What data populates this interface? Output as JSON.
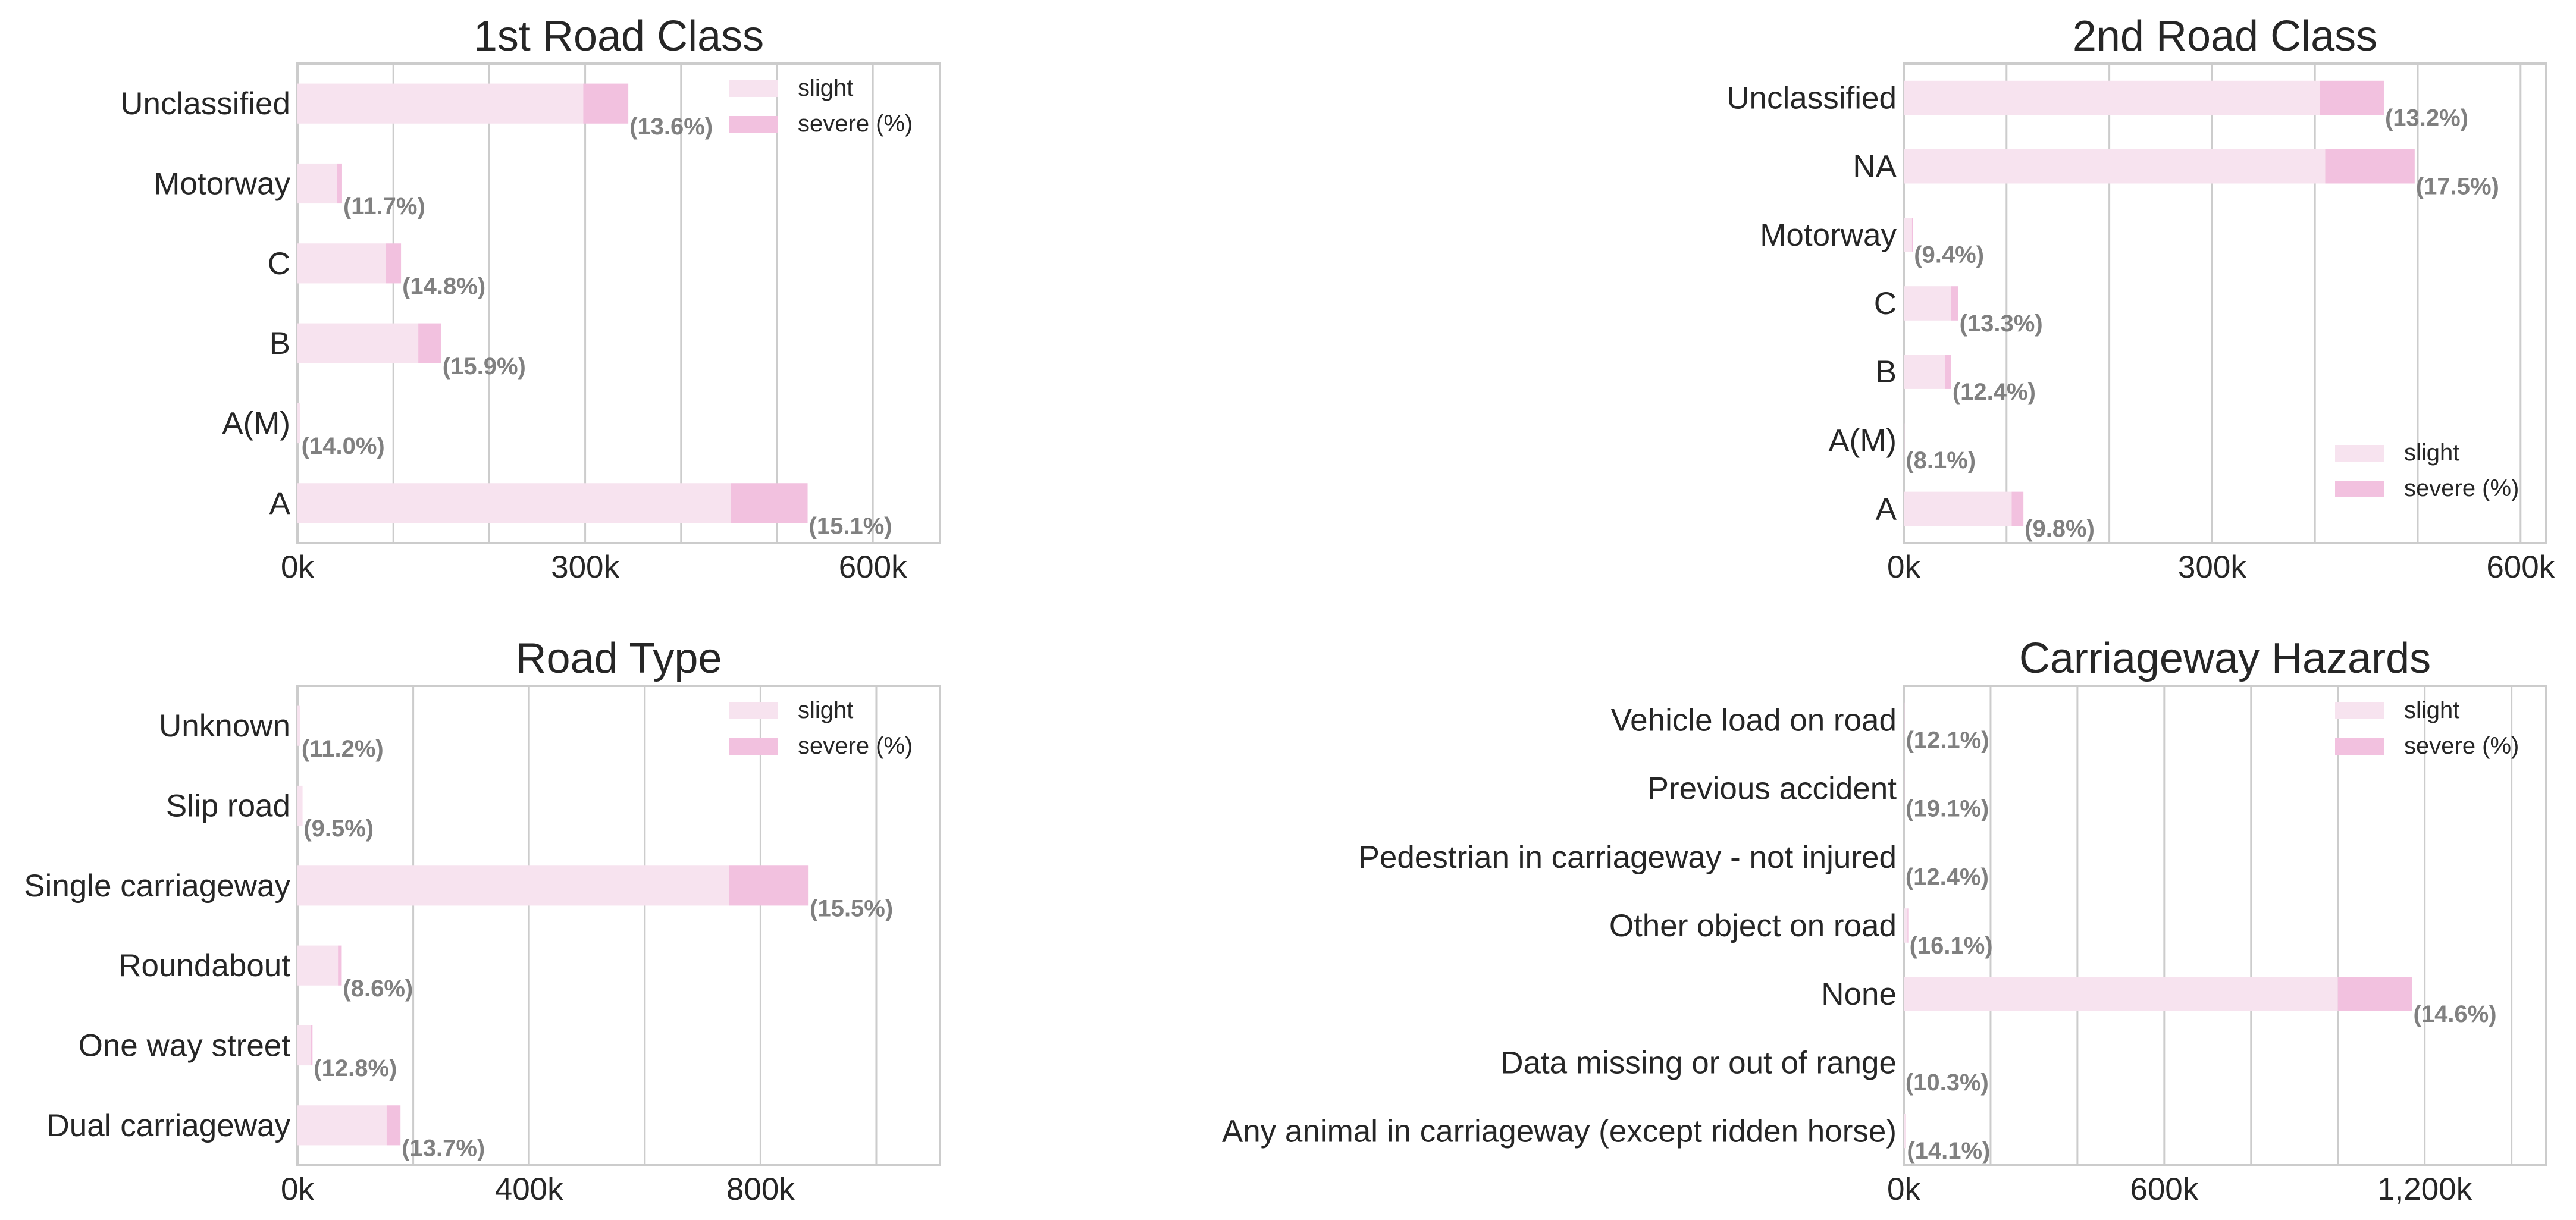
{
  "colors": {
    "slight": "#f7e3ef",
    "severe": "#f2c1df",
    "grid": "#cccccc",
    "frame": "#cccccc",
    "pct_text": "#808080"
  },
  "chart_data": [
    {
      "type": "bar",
      "orientation": "horizontal",
      "stacked": true,
      "title": "1st Road Class",
      "categories": [
        "Unclassified",
        "Motorway",
        "C",
        "B",
        "A(M)",
        "A"
      ],
      "series": [
        {
          "name": "slight",
          "values": [
            298000,
            41000,
            92000,
            126000,
            2500,
            452000
          ]
        },
        {
          "name": "severe (%)",
          "values": [
            47000,
            5500,
            16000,
            24000,
            400,
            80000
          ]
        }
      ],
      "severe_pct_labels": [
        "(13.6%)",
        "(11.7%)",
        "(14.8%)",
        "(15.9%)",
        "(14.0%)",
        "(15.1%)"
      ],
      "xlim": [
        0,
        670000
      ],
      "xticks": [
        0,
        300000,
        600000
      ],
      "xticklabels": [
        "0k",
        "300k",
        "600k"
      ],
      "gridlines": [
        0,
        100000,
        200000,
        300000,
        400000,
        500000,
        600000
      ],
      "legend": "top-right"
    },
    {
      "type": "bar",
      "orientation": "horizontal",
      "stacked": true,
      "title": "2nd Road Class",
      "categories": [
        "Unclassified",
        "NA",
        "Motorway",
        "C",
        "B",
        "A(M)",
        "A"
      ],
      "series": [
        {
          "name": "slight",
          "values": [
            405000,
            410000,
            8000,
            46000,
            40500,
            700,
            105000
          ]
        },
        {
          "name": "severe (%)",
          "values": [
            62000,
            87000,
            800,
            7000,
            5700,
            60,
            11400
          ]
        }
      ],
      "severe_pct_labels": [
        "(13.2%)",
        "(17.5%)",
        "(9.4%)",
        "(13.3%)",
        "(12.4%)",
        "(8.1%)",
        "(9.8%)"
      ],
      "xlim": [
        0,
        625000
      ],
      "xticks": [
        0,
        300000,
        600000
      ],
      "xticklabels": [
        "0k",
        "300k",
        "600k"
      ],
      "gridlines": [
        0,
        100000,
        200000,
        300000,
        400000,
        500000,
        600000
      ],
      "legend": "bottom-right"
    },
    {
      "type": "bar",
      "orientation": "horizontal",
      "stacked": true,
      "title": "Road Type",
      "categories": [
        "Unknown",
        "Slip road",
        "Single carriageway",
        "Roundabout",
        "One way street",
        "Dual carriageway"
      ],
      "series": [
        {
          "name": "slight",
          "values": [
            4500,
            7700,
            746000,
            70000,
            22700,
            154000
          ]
        },
        {
          "name": "severe (%)",
          "values": [
            500,
            800,
            137000,
            6500,
            3300,
            24000
          ]
        }
      ],
      "severe_pct_labels": [
        "(11.2%)",
        "(9.5%)",
        "(15.5%)",
        "(8.6%)",
        "(12.8%)",
        "(13.7%)"
      ],
      "xlim": [
        0,
        1110000
      ],
      "xticks": [
        0,
        400000,
        800000
      ],
      "xticklabels": [
        "0k",
        "400k",
        "800k"
      ],
      "gridlines": [
        0,
        200000,
        400000,
        600000,
        800000,
        1000000
      ],
      "legend": "top-right"
    },
    {
      "type": "bar",
      "orientation": "horizontal",
      "stacked": true,
      "title": "Carriageway Hazards",
      "categories": [
        "Vehicle load on road",
        "Previous accident",
        "Pedestrian in carriageway - not injured",
        "Other object on road",
        "None",
        "Data missing or out of range",
        "Any animal in carriageway (except ridden horse)"
      ],
      "series": [
        {
          "name": "slight",
          "values": [
            1800,
            1300,
            1000,
            8700,
            1000000,
            1000,
            3900
          ]
        },
        {
          "name": "severe (%)",
          "values": [
            250,
            300,
            140,
            1700,
            171000,
            115,
            640
          ]
        }
      ],
      "severe_pct_labels": [
        "(12.1%)",
        "(19.1%)",
        "(12.4%)",
        "(16.1%)",
        "(14.6%)",
        "(10.3%)",
        "(14.1%)"
      ],
      "xlim": [
        0,
        1480000
      ],
      "xticks": [
        0,
        600000,
        1200000
      ],
      "xticklabels": [
        "0k",
        "600k",
        "1,200k"
      ],
      "gridlines": [
        0,
        200000,
        400000,
        600000,
        800000,
        1000000,
        1200000,
        1400000
      ],
      "legend": "top-right"
    }
  ]
}
